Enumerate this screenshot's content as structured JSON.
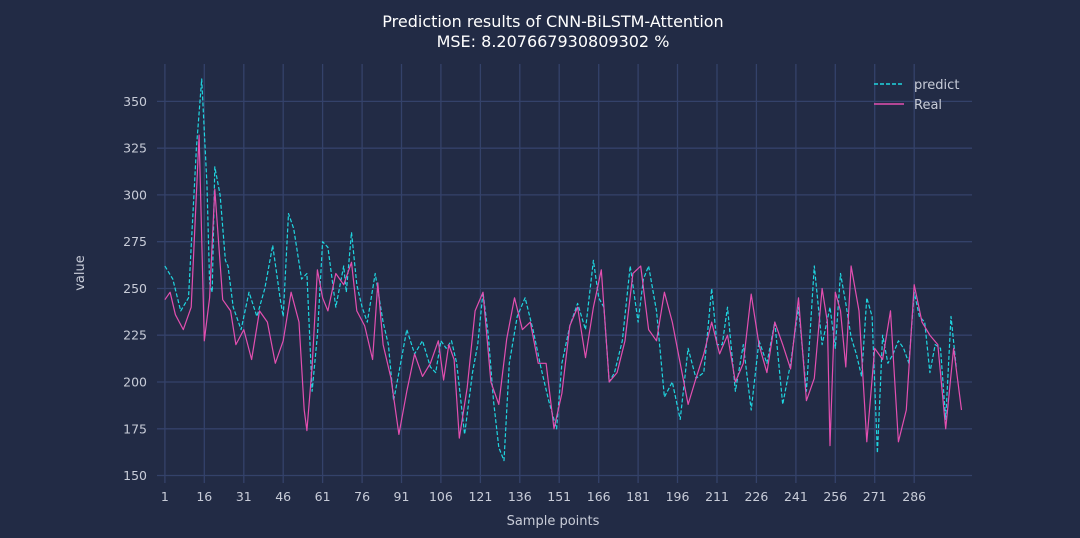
{
  "chart_data": {
    "type": "line",
    "title": "Prediction results of CNN-BiLSTM-Attention",
    "subtitle": "MSE: 8.207667930809302 %",
    "xlabel": "Sample points",
    "ylabel": "value",
    "xlim": [
      -2,
      308
    ],
    "ylim": [
      146,
      370
    ],
    "x_ticks": [
      1,
      16,
      31,
      46,
      61,
      76,
      91,
      106,
      121,
      136,
      151,
      166,
      181,
      196,
      211,
      226,
      241,
      256,
      271,
      286
    ],
    "y_ticks": [
      150,
      175,
      200,
      225,
      250,
      275,
      300,
      325,
      350
    ],
    "grid": true,
    "legend_position": "top-right",
    "colors": {
      "background": "#222b45",
      "grid": "#34426a",
      "text": "#c8ccd8",
      "predict": "#1fd6e0",
      "real": "#e34fb0"
    },
    "series": [
      {
        "name": "predict",
        "style": "dashed",
        "color": "#1fd6e0",
        "x": [
          1,
          4,
          7,
          10,
          13,
          15,
          17,
          18,
          19,
          20,
          22,
          24,
          25,
          27,
          30,
          33,
          36,
          39,
          42,
          45,
          46,
          48,
          50,
          53,
          55,
          57,
          59,
          61,
          63,
          66,
          69,
          70,
          72,
          74,
          76,
          78,
          81,
          84,
          86,
          88,
          90,
          93,
          96,
          99,
          102,
          104,
          106,
          108,
          110,
          112,
          115,
          118,
          120,
          122,
          124,
          126,
          128,
          130,
          132,
          135,
          138,
          141,
          144,
          147,
          150,
          152,
          155,
          158,
          161,
          164,
          166,
          168,
          170,
          172,
          175,
          178,
          181,
          183,
          185,
          188,
          191,
          194,
          197,
          200,
          203,
          206,
          209,
          211,
          213,
          215,
          218,
          221,
          224,
          227,
          230,
          233,
          236,
          239,
          242,
          245,
          248,
          251,
          254,
          256,
          258,
          260,
          262,
          264,
          266,
          268,
          270,
          272,
          274,
          276,
          278,
          280,
          282,
          284,
          286,
          288,
          290,
          292,
          294,
          296,
          298,
          300,
          302
        ],
        "y": [
          262,
          255,
          238,
          245,
          325,
          362,
          305,
          253,
          248,
          315,
          300,
          265,
          262,
          240,
          228,
          248,
          235,
          250,
          273,
          243,
          235,
          290,
          282,
          255,
          258,
          195,
          225,
          275,
          272,
          240,
          262,
          248,
          280,
          252,
          240,
          232,
          258,
          232,
          220,
          190,
          205,
          228,
          215,
          222,
          208,
          205,
          222,
          218,
          222,
          210,
          172,
          205,
          220,
          248,
          225,
          190,
          165,
          158,
          210,
          235,
          245,
          228,
          208,
          190,
          175,
          210,
          230,
          242,
          228,
          265,
          245,
          240,
          200,
          205,
          222,
          262,
          232,
          255,
          262,
          238,
          192,
          200,
          180,
          218,
          202,
          205,
          250,
          220,
          220,
          240,
          195,
          220,
          185,
          222,
          210,
          232,
          188,
          210,
          240,
          195,
          262,
          220,
          240,
          218,
          258,
          242,
          224,
          215,
          203,
          245,
          235,
          162,
          225,
          210,
          215,
          222,
          218,
          210,
          248,
          235,
          232,
          205,
          220,
          218,
          180,
          235,
          208
        ]
      },
      {
        "name": "Real",
        "style": "solid",
        "color": "#e34fb0",
        "x": [
          1,
          3,
          5,
          8,
          11,
          14,
          16,
          18,
          20,
          23,
          26,
          28,
          31,
          34,
          37,
          40,
          43,
          46,
          49,
          52,
          54,
          55,
          57,
          59,
          61,
          63,
          66,
          69,
          72,
          74,
          77,
          80,
          82,
          84,
          87,
          90,
          93,
          96,
          99,
          102,
          105,
          107,
          109,
          111,
          113,
          116,
          119,
          122,
          125,
          128,
          131,
          134,
          137,
          140,
          143,
          146,
          149,
          152,
          155,
          158,
          161,
          164,
          167,
          170,
          173,
          176,
          179,
          182,
          185,
          188,
          191,
          194,
          197,
          200,
          203,
          206,
          209,
          212,
          215,
          218,
          221,
          224,
          227,
          230,
          233,
          236,
          239,
          242,
          245,
          248,
          251,
          253,
          254,
          256,
          258,
          260,
          262,
          265,
          268,
          271,
          274,
          277,
          280,
          283,
          286,
          289,
          292,
          295,
          298,
          301,
          304
        ],
        "y": [
          244,
          248,
          236,
          228,
          240,
          332,
          222,
          245,
          303,
          244,
          238,
          220,
          228,
          212,
          238,
          232,
          210,
          222,
          248,
          232,
          185,
          174,
          208,
          260,
          245,
          238,
          258,
          252,
          264,
          238,
          230,
          212,
          253,
          220,
          202,
          172,
          195,
          215,
          203,
          210,
          222,
          201,
          220,
          212,
          170,
          197,
          238,
          248,
          200,
          188,
          223,
          245,
          228,
          232,
          210,
          210,
          175,
          194,
          230,
          240,
          213,
          240,
          260,
          200,
          205,
          222,
          258,
          262,
          228,
          222,
          248,
          232,
          210,
          188,
          202,
          215,
          232,
          215,
          225,
          200,
          210,
          247,
          220,
          205,
          232,
          220,
          207,
          245,
          190,
          202,
          250,
          232,
          166,
          248,
          238,
          208,
          262,
          238,
          168,
          218,
          212,
          238,
          168,
          185,
          252,
          232,
          225,
          220,
          175,
          218,
          185
        ]
      }
    ]
  }
}
